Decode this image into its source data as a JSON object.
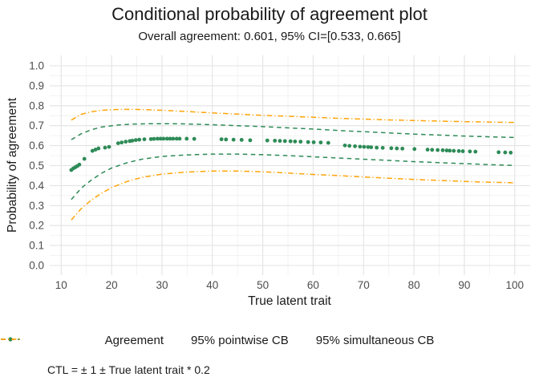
{
  "title": "Conditional probability of agreement plot",
  "subtitle": "Overall agreement: 0.601, 95% CI=[0.533, 0.665]",
  "caption": "CTL = ± 1 ± True latent trait * 0.2",
  "colors": {
    "agreement": "#2e8b57",
    "pointwise_cb": "#2e8b57",
    "simultaneous_cb": "#ffa408",
    "grid_major": "#e3e3e3",
    "grid_minor": "#f1f1f1",
    "axis_text": "#4d4d4d",
    "text": "#1a1a1a"
  },
  "legend": {
    "items": [
      {
        "label": "Agreement",
        "marker": "point",
        "color": "#2e8b57"
      },
      {
        "label": "95% pointwise CB",
        "marker": "dashed",
        "color": "#2e8b57"
      },
      {
        "label": "95% simultaneous CB",
        "marker": "dashdot",
        "color": "#ffa408"
      }
    ]
  },
  "chart_data": {
    "type": "scatter",
    "title": "Conditional probability of agreement plot",
    "subtitle": "Overall agreement: 0.601, 95% CI=[0.533, 0.665]",
    "xlabel": "True latent trait",
    "ylabel": "Probability of agreement",
    "xlim": [
      10,
      100
    ],
    "ylim": [
      0.0,
      1.0
    ],
    "x_ticks": [
      10,
      20,
      30,
      40,
      50,
      60,
      70,
      80,
      90,
      100
    ],
    "y_ticks": [
      0.0,
      0.1,
      0.2,
      0.3,
      0.4,
      0.5,
      0.6,
      0.7,
      0.8,
      0.9,
      1.0
    ],
    "grid": true,
    "legend_position": "bottom",
    "series": [
      {
        "name": "Agreement",
        "kind": "scatter",
        "color": "#2e8b57",
        "points": [
          [
            12.0,
            0.478
          ],
          [
            12.4,
            0.486
          ],
          [
            12.8,
            0.492
          ],
          [
            13.2,
            0.498
          ],
          [
            13.6,
            0.505
          ],
          [
            14.6,
            0.534
          ],
          [
            16.2,
            0.574
          ],
          [
            16.8,
            0.58
          ],
          [
            17.4,
            0.586
          ],
          [
            18.7,
            0.59
          ],
          [
            19.5,
            0.594
          ],
          [
            21.3,
            0.612
          ],
          [
            22.0,
            0.616
          ],
          [
            22.8,
            0.62
          ],
          [
            23.6,
            0.623
          ],
          [
            24.1,
            0.625
          ],
          [
            24.8,
            0.628
          ],
          [
            25.5,
            0.63
          ],
          [
            26.5,
            0.632
          ],
          [
            27.8,
            0.633
          ],
          [
            28.4,
            0.634
          ],
          [
            29.1,
            0.635
          ],
          [
            29.7,
            0.635
          ],
          [
            30.3,
            0.635
          ],
          [
            31.0,
            0.635
          ],
          [
            31.6,
            0.635
          ],
          [
            32.2,
            0.635
          ],
          [
            32.9,
            0.635
          ],
          [
            33.5,
            0.635
          ],
          [
            34.9,
            0.635
          ],
          [
            36.4,
            0.634
          ],
          [
            41.8,
            0.632
          ],
          [
            42.7,
            0.631
          ],
          [
            44.2,
            0.63
          ],
          [
            45.8,
            0.629
          ],
          [
            47.5,
            0.627
          ],
          [
            50.9,
            0.626
          ],
          [
            52.4,
            0.625
          ],
          [
            53.4,
            0.624
          ],
          [
            54.4,
            0.623
          ],
          [
            55.5,
            0.622
          ],
          [
            56.4,
            0.621
          ],
          [
            57.5,
            0.62
          ],
          [
            59.0,
            0.618
          ],
          [
            60.1,
            0.617
          ],
          [
            61.5,
            0.616
          ],
          [
            63.0,
            0.614
          ],
          [
            66.3,
            0.601
          ],
          [
            67.2,
            0.599
          ],
          [
            68.3,
            0.597
          ],
          [
            69.3,
            0.595
          ],
          [
            70.1,
            0.594
          ],
          [
            70.9,
            0.593
          ],
          [
            71.5,
            0.592
          ],
          [
            72.6,
            0.59
          ],
          [
            73.8,
            0.589
          ],
          [
            75.5,
            0.587
          ],
          [
            76.6,
            0.586
          ],
          [
            77.7,
            0.585
          ],
          [
            80.1,
            0.583
          ],
          [
            82.7,
            0.58
          ],
          [
            83.6,
            0.579
          ],
          [
            84.7,
            0.578
          ],
          [
            85.7,
            0.577
          ],
          [
            86.5,
            0.576
          ],
          [
            87.1,
            0.575
          ],
          [
            87.9,
            0.574
          ],
          [
            88.9,
            0.573
          ],
          [
            89.7,
            0.572
          ],
          [
            91.1,
            0.571
          ],
          [
            92.2,
            0.57
          ],
          [
            96.8,
            0.567
          ],
          [
            98.1,
            0.566
          ],
          [
            99.2,
            0.565
          ]
        ]
      },
      {
        "name": "95% pointwise CB (upper)",
        "kind": "line",
        "dash": "dashed",
        "color": "#2e8b57",
        "points": [
          [
            12,
            0.63
          ],
          [
            14,
            0.66
          ],
          [
            16,
            0.68
          ],
          [
            18,
            0.693
          ],
          [
            21,
            0.703
          ],
          [
            24,
            0.708
          ],
          [
            28,
            0.71
          ],
          [
            32,
            0.71
          ],
          [
            36,
            0.708
          ],
          [
            40,
            0.705
          ],
          [
            45,
            0.7
          ],
          [
            50,
            0.695
          ],
          [
            55,
            0.689
          ],
          [
            60,
            0.683
          ],
          [
            65,
            0.676
          ],
          [
            70,
            0.67
          ],
          [
            75,
            0.664
          ],
          [
            80,
            0.658
          ],
          [
            85,
            0.653
          ],
          [
            90,
            0.648
          ],
          [
            95,
            0.644
          ],
          [
            100,
            0.641
          ]
        ]
      },
      {
        "name": "95% pointwise CB (lower)",
        "kind": "line",
        "dash": "dashed",
        "color": "#2e8b57",
        "points": [
          [
            12,
            0.33
          ],
          [
            14,
            0.388
          ],
          [
            16,
            0.428
          ],
          [
            18,
            0.462
          ],
          [
            20,
            0.488
          ],
          [
            23,
            0.514
          ],
          [
            26,
            0.532
          ],
          [
            30,
            0.546
          ],
          [
            35,
            0.554
          ],
          [
            40,
            0.558
          ],
          [
            45,
            0.558
          ],
          [
            50,
            0.555
          ],
          [
            55,
            0.55
          ],
          [
            60,
            0.544
          ],
          [
            65,
            0.538
          ],
          [
            70,
            0.532
          ],
          [
            75,
            0.526
          ],
          [
            80,
            0.52
          ],
          [
            85,
            0.515
          ],
          [
            90,
            0.51
          ],
          [
            95,
            0.505
          ],
          [
            100,
            0.501
          ]
        ]
      },
      {
        "name": "95% simultaneous CB (upper)",
        "kind": "line",
        "dash": "dashdot",
        "color": "#ffa408",
        "points": [
          [
            12,
            0.728
          ],
          [
            14,
            0.757
          ],
          [
            16,
            0.77
          ],
          [
            18,
            0.777
          ],
          [
            21,
            0.781
          ],
          [
            24,
            0.782
          ],
          [
            27,
            0.78
          ],
          [
            30,
            0.777
          ],
          [
            35,
            0.771
          ],
          [
            40,
            0.764
          ],
          [
            45,
            0.758
          ],
          [
            50,
            0.752
          ],
          [
            55,
            0.747
          ],
          [
            60,
            0.742
          ],
          [
            65,
            0.737
          ],
          [
            70,
            0.733
          ],
          [
            75,
            0.729
          ],
          [
            80,
            0.726
          ],
          [
            85,
            0.723
          ],
          [
            90,
            0.72
          ],
          [
            95,
            0.718
          ],
          [
            100,
            0.716
          ]
        ]
      },
      {
        "name": "95% simultaneous CB (lower)",
        "kind": "line",
        "dash": "dashdot",
        "color": "#ffa408",
        "points": [
          [
            12,
            0.228
          ],
          [
            14,
            0.285
          ],
          [
            16,
            0.328
          ],
          [
            18,
            0.362
          ],
          [
            20,
            0.39
          ],
          [
            23,
            0.42
          ],
          [
            26,
            0.441
          ],
          [
            30,
            0.458
          ],
          [
            35,
            0.468
          ],
          [
            40,
            0.473
          ],
          [
            45,
            0.473
          ],
          [
            50,
            0.469
          ],
          [
            55,
            0.463
          ],
          [
            60,
            0.456
          ],
          [
            65,
            0.45
          ],
          [
            70,
            0.443
          ],
          [
            75,
            0.437
          ],
          [
            80,
            0.431
          ],
          [
            85,
            0.426
          ],
          [
            90,
            0.421
          ],
          [
            95,
            0.417
          ],
          [
            100,
            0.414
          ]
        ]
      }
    ]
  }
}
